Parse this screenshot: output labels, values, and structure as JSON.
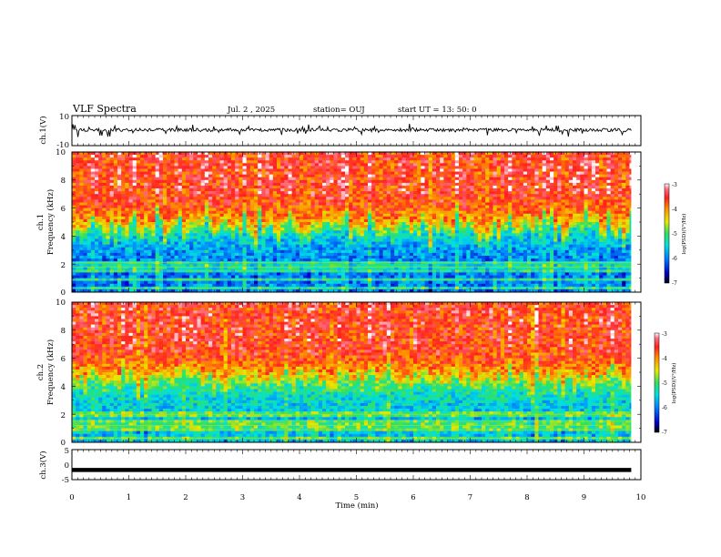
{
  "header": {
    "title": "VLF Spectra",
    "date": "Jul. 2 , 2025",
    "station": "station= OUJ",
    "start_ut": "start UT = 13: 50: 0"
  },
  "colors": {
    "spectrogram_scale": [
      "#000000",
      "#0000c8",
      "#0080ff",
      "#00e0e0",
      "#30e060",
      "#e8e800",
      "#ff9000",
      "#ff2020",
      "#ff7080",
      "#ffffff"
    ]
  },
  "chart_data": [
    {
      "type": "line",
      "panel": "ch1-waveform",
      "ylabel": "ch.1(V)",
      "ylim": [
        -10,
        10
      ],
      "yticks": [
        "10",
        "-10"
      ],
      "xlim": [
        0,
        9.83
      ],
      "baseline": 0.3,
      "noise_band": [
        -1.5,
        2.0
      ],
      "spike_range": [
        -4.5,
        4.5
      ]
    },
    {
      "type": "heatmap",
      "panel": "ch1-spectrogram",
      "ylabel": "ch.1\nFrequency (kHz)",
      "ylabel_lines": [
        "ch.1",
        "Frequency (kHz)"
      ],
      "ylim": [
        0,
        10
      ],
      "yticks": [
        "0",
        "2",
        "4",
        "6",
        "8",
        "10"
      ],
      "xlim": [
        0,
        9.83
      ],
      "colorbar": {
        "label": "log(PSD)(V²/Hz)",
        "range": [
          -7,
          -3
        ],
        "ticks": [
          "-3",
          "-4",
          "-5",
          "-6",
          "-7"
        ]
      },
      "profile": {
        "low_freq_level_log_psd": -6.0,
        "high_freq_level_log_psd": -3.6,
        "transition_freq_khz": 4.5,
        "narrowband_lines_khz": [
          0.3,
          0.9,
          1.5,
          1.8,
          2.1
        ]
      }
    },
    {
      "type": "heatmap",
      "panel": "ch2-spectrogram",
      "ylabel": "ch.2\nFrequency (kHz)",
      "ylabel_lines": [
        "ch.2",
        "Frequency (kHz)"
      ],
      "ylim": [
        0,
        10
      ],
      "yticks": [
        "0",
        "2",
        "4",
        "6",
        "8",
        "10"
      ],
      "xlim": [
        0,
        9.83
      ],
      "colorbar": {
        "label": "log(PSD)(V²/Hz)",
        "range": [
          -7,
          -3
        ],
        "ticks": [
          "-3",
          "-4",
          "-5",
          "-6",
          "-7"
        ]
      },
      "profile": {
        "low_freq_level_log_psd": -5.6,
        "high_freq_level_log_psd": -3.6,
        "transition_freq_khz": 4.5,
        "narrowband_lines_khz": [
          0.3,
          0.9,
          1.2,
          1.5,
          2.0
        ]
      }
    },
    {
      "type": "line",
      "panel": "ch3-waveform",
      "ylabel": "ch.3(V)",
      "ylim": [
        -5,
        5
      ],
      "yticks": [
        "5",
        "0",
        "-5"
      ],
      "xlim": [
        0,
        9.83
      ],
      "x": [
        0,
        9.83
      ],
      "y": [
        -1.8,
        -1.8
      ],
      "xlabel": "Time (min)",
      "xticks": [
        "0",
        "1",
        "2",
        "3",
        "4",
        "5",
        "6",
        "7",
        "8",
        "9",
        "10"
      ]
    }
  ]
}
